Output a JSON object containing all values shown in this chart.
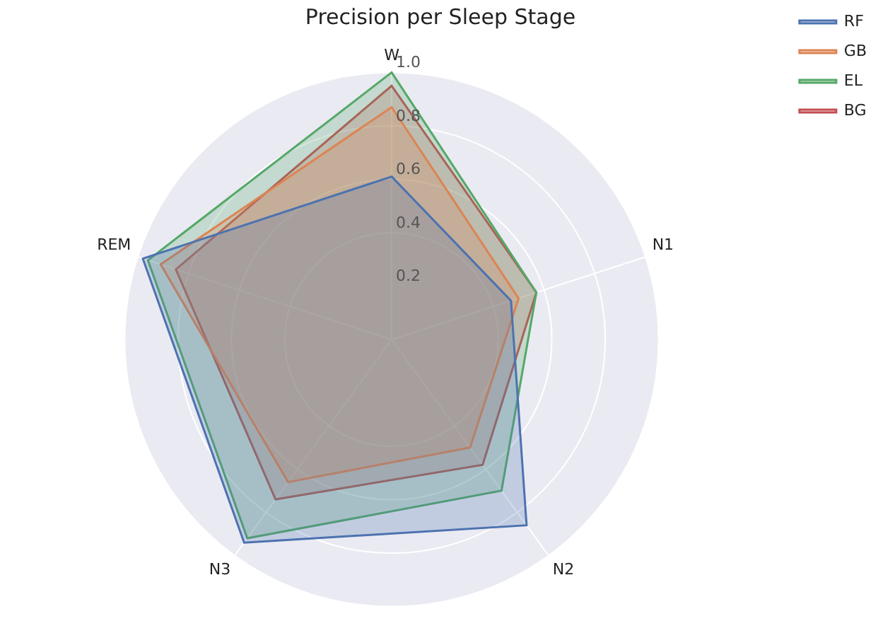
{
  "chart_data": {
    "type": "radar",
    "title": "Precision per Sleep Stage",
    "categories": [
      "W",
      "N1",
      "N2",
      "N3",
      "REM"
    ],
    "series": [
      {
        "name": "RF",
        "color": "#4c72b0",
        "values": [
          0.61,
          0.47,
          0.86,
          0.94,
          0.98
        ]
      },
      {
        "name": "GB",
        "color": "#dd8452",
        "values": [
          0.87,
          0.5,
          0.5,
          0.66,
          0.91
        ]
      },
      {
        "name": "EL",
        "color": "#55a868",
        "values": [
          1.0,
          0.57,
          0.7,
          0.92,
          0.96
        ]
      },
      {
        "name": "BG",
        "color": "#c44e52",
        "values": [
          0.95,
          0.57,
          0.58,
          0.74,
          0.85
        ]
      }
    ],
    "ylim": [
      0,
      1
    ],
    "yticks": [
      0.2,
      0.4,
      0.6,
      0.8,
      {
        "value": 1,
        "label": "1.0"
      }
    ],
    "grid": true,
    "legend": "top right",
    "marker": "none"
  }
}
